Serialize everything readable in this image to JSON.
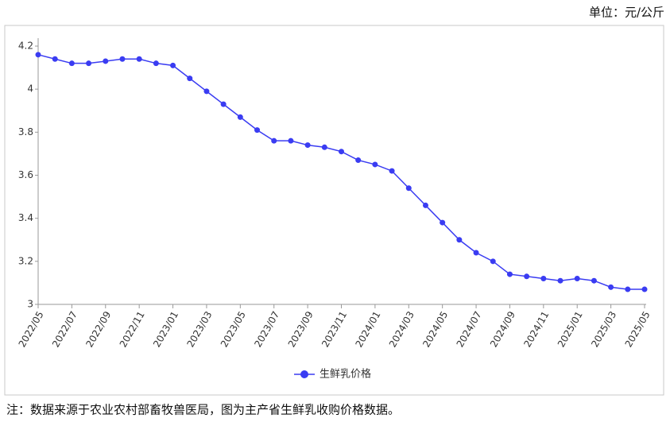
{
  "chart_data": {
    "type": "line",
    "unit": "单位：元/公斤",
    "note": "注：数据来源于农业农村部畜牧兽医局，图为主产省生鲜乳收购价格数据。",
    "categories": [
      "2022/05",
      null,
      "2022/07",
      null,
      "2022/09",
      null,
      "2022/11",
      null,
      "2023/01",
      null,
      "2023/03",
      null,
      "2023/05",
      null,
      "2023/07",
      null,
      "2023/09",
      null,
      "2023/11",
      null,
      "2024/01",
      null,
      "2024/03",
      null,
      "2024/05",
      null,
      "2024/07",
      null,
      "2024/09",
      null,
      "2024/11",
      null,
      "2025/01",
      null,
      "2025/03",
      null,
      "2025/05"
    ],
    "series": [
      {
        "name": "生鲜乳价格",
        "color": "#3a3cf2",
        "values": [
          4.16,
          4.14,
          4.12,
          4.12,
          4.13,
          4.14,
          4.14,
          4.12,
          4.11,
          4.05,
          3.99,
          3.93,
          3.87,
          3.81,
          3.76,
          3.76,
          3.74,
          3.73,
          3.71,
          3.67,
          3.65,
          3.62,
          3.54,
          3.46,
          3.38,
          3.3,
          3.24,
          3.2,
          3.14,
          3.13,
          3.12,
          3.11,
          3.12,
          3.11,
          3.08,
          3.07,
          3.07
        ]
      }
    ],
    "ylim": [
      3,
      4.2
    ],
    "yticks": [
      3,
      3.2,
      3.4,
      3.6,
      3.8,
      4,
      4.2
    ],
    "grid": false,
    "legend": "bottom"
  }
}
